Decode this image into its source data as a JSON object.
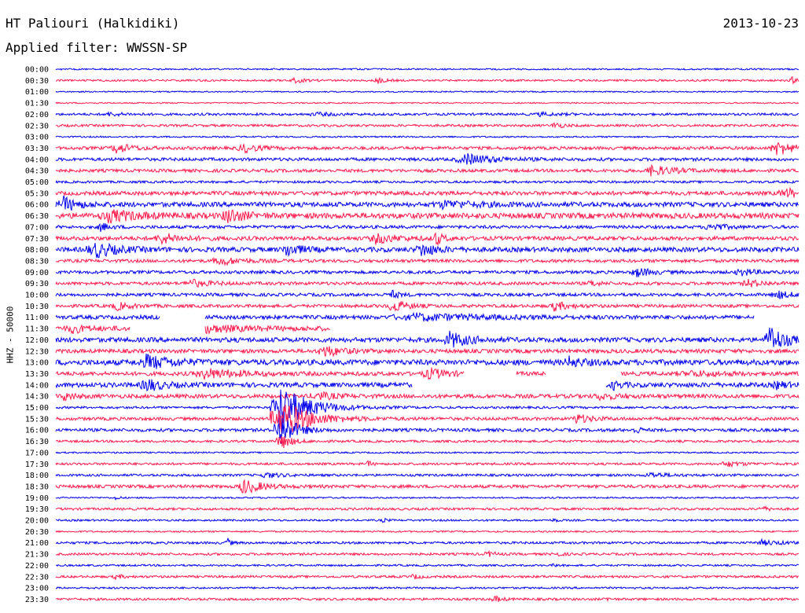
{
  "header": {
    "station": "HT Paliouri (Halkidiki)",
    "filter": "Applied filter: WWSSN-SP",
    "date": "2013-10-23"
  },
  "chart_data": {
    "type": "line",
    "title": "HT Paliouri (Halkidiki)",
    "subtitle": "Applied filter: WWSSN-SP",
    "ylabel": "HHZ - 50000",
    "xlabel": "",
    "colors": [
      "#0000ee",
      "#ff1a4d"
    ],
    "grid": false,
    "rows": [
      {
        "label": "00:00",
        "amp": 1,
        "events": []
      },
      {
        "label": "00:30",
        "amp": 1.2,
        "events": [
          [
            0.32,
            3,
            0.03
          ],
          [
            0.43,
            5,
            0.02
          ],
          [
            0.99,
            4,
            0.02
          ]
        ]
      },
      {
        "label": "01:00",
        "amp": 0.8,
        "events": []
      },
      {
        "label": "01:30",
        "amp": 0.8,
        "events": []
      },
      {
        "label": "02:00",
        "amp": 1.5,
        "events": [
          [
            0.07,
            2,
            0.05
          ],
          [
            0.35,
            2,
            0.05
          ],
          [
            0.65,
            2,
            0.05
          ]
        ]
      },
      {
        "label": "02:30",
        "amp": 1.5,
        "events": [
          [
            0.67,
            5,
            0.02
          ]
        ]
      },
      {
        "label": "03:00",
        "amp": 1,
        "events": []
      },
      {
        "label": "03:30",
        "amp": 2,
        "events": [
          [
            0.08,
            7,
            0.04
          ],
          [
            0.25,
            6,
            0.04
          ],
          [
            0.97,
            9,
            0.05
          ]
        ]
      },
      {
        "label": "04:00",
        "amp": 2,
        "events": [
          [
            0.55,
            7,
            0.08
          ]
        ]
      },
      {
        "label": "04:30",
        "amp": 2,
        "events": [
          [
            0.8,
            6,
            0.07
          ]
        ]
      },
      {
        "label": "05:00",
        "amp": 1.5,
        "events": []
      },
      {
        "label": "05:30",
        "amp": 2.5,
        "events": [
          [
            0.98,
            6,
            0.05
          ]
        ]
      },
      {
        "label": "06:00",
        "amp": 3,
        "events": [
          [
            0.01,
            9,
            0.04
          ],
          [
            0.52,
            4,
            0.1
          ]
        ]
      },
      {
        "label": "06:30",
        "amp": 3.5,
        "events": [
          [
            0.07,
            7,
            0.08
          ],
          [
            0.23,
            10,
            0.04
          ]
        ]
      },
      {
        "label": "07:00",
        "amp": 2,
        "events": [
          [
            0.06,
            6,
            0.02
          ],
          [
            0.88,
            5,
            0.04
          ]
        ]
      },
      {
        "label": "07:30",
        "amp": 2.5,
        "events": [
          [
            0.14,
            7,
            0.05
          ],
          [
            0.43,
            6,
            0.06
          ],
          [
            0.51,
            9,
            0.02
          ]
        ]
      },
      {
        "label": "08:00",
        "amp": 3,
        "events": [
          [
            0.05,
            10,
            0.06
          ],
          [
            0.31,
            8,
            0.04
          ],
          [
            0.49,
            9,
            0.04
          ]
        ]
      },
      {
        "label": "08:30",
        "amp": 2,
        "events": [
          [
            0.22,
            5,
            0.06
          ]
        ]
      },
      {
        "label": "09:00",
        "amp": 2,
        "events": [
          [
            0.78,
            6,
            0.04
          ],
          [
            0.92,
            5,
            0.04
          ]
        ]
      },
      {
        "label": "09:30",
        "amp": 2,
        "events": [
          [
            0.18,
            5,
            0.05
          ],
          [
            0.72,
            4,
            0.02
          ],
          [
            0.93,
            5,
            0.04
          ]
        ]
      },
      {
        "label": "10:00",
        "amp": 2,
        "events": [
          [
            0.45,
            6,
            0.02
          ],
          [
            0.97,
            5,
            0.04
          ]
        ]
      },
      {
        "label": "10:30",
        "amp": 2,
        "events": [
          [
            0.08,
            5,
            0.04
          ],
          [
            0.45,
            9,
            0.04
          ],
          [
            0.67,
            6,
            0.04
          ]
        ]
      },
      {
        "label": "11:00",
        "amp": 2.5,
        "events": [
          [
            0.48,
            4,
            0.2
          ]
        ],
        "gaps": [
          [
            0.14,
            0.2
          ],
          [
            0.94,
            1.0
          ]
        ]
      },
      {
        "label": "11:30",
        "amp": 3,
        "events": [
          [
            0.02,
            5,
            0.04
          ],
          [
            0.2,
            4,
            0.1
          ]
        ],
        "gaps": [
          [
            0.1,
            0.2
          ],
          [
            0.37,
            1.0
          ]
        ]
      },
      {
        "label": "12:00",
        "amp": 3,
        "events": [
          [
            0.53,
            10,
            0.05
          ],
          [
            0.96,
            19,
            0.04
          ]
        ]
      },
      {
        "label": "12:30",
        "amp": 2.5,
        "events": [
          [
            0.36,
            7,
            0.05
          ]
        ]
      },
      {
        "label": "13:00",
        "amp": 3.5,
        "events": [
          [
            0.12,
            9,
            0.07
          ],
          [
            0.69,
            6,
            0.04
          ]
        ]
      },
      {
        "label": "13:30",
        "amp": 2.5,
        "events": [
          [
            0.2,
            6,
            0.1
          ],
          [
            0.5,
            7,
            0.05
          ],
          [
            0.85,
            3,
            0.1
          ]
        ],
        "gaps": [
          [
            0.55,
            0.62
          ],
          [
            0.66,
            0.76
          ]
        ]
      },
      {
        "label": "14:00",
        "amp": 3,
        "events": [
          [
            0.12,
            9,
            0.04
          ],
          [
            0.75,
            5,
            0.02
          ],
          [
            0.97,
            4,
            0.03
          ]
        ],
        "gaps": [
          [
            0.48,
            0.74
          ]
        ]
      },
      {
        "label": "14:30",
        "amp": 2.5,
        "events": [
          [
            0.01,
            5,
            0.03
          ],
          [
            0.35,
            5,
            0.05
          ],
          [
            0.73,
            4,
            0.05
          ]
        ]
      },
      {
        "label": "15:00",
        "amp": 1.5,
        "events": [
          [
            0.3,
            30,
            0.08
          ]
        ]
      },
      {
        "label": "15:30",
        "amp": 2,
        "events": [
          [
            0.3,
            26,
            0.08
          ],
          [
            0.7,
            6,
            0.04
          ]
        ]
      },
      {
        "label": "16:00",
        "amp": 2,
        "events": [
          [
            0.3,
            26,
            0.04
          ],
          [
            0.78,
            8,
            0.01
          ]
        ]
      },
      {
        "label": "16:30",
        "amp": 1.5,
        "events": [
          [
            0.3,
            12,
            0.03
          ]
        ]
      },
      {
        "label": "17:00",
        "amp": 1,
        "events": []
      },
      {
        "label": "17:30",
        "amp": 1.5,
        "events": [
          [
            0.42,
            4,
            0.01
          ],
          [
            0.9,
            4,
            0.04
          ]
        ]
      },
      {
        "label": "18:00",
        "amp": 1.5,
        "events": [
          [
            0.28,
            4,
            0.04
          ],
          [
            0.8,
            3,
            0.05
          ]
        ]
      },
      {
        "label": "18:30",
        "amp": 2,
        "events": [
          [
            0.25,
            10,
            0.05
          ]
        ]
      },
      {
        "label": "19:00",
        "amp": 1,
        "events": [
          [
            0.08,
            3,
            0.01
          ]
        ]
      },
      {
        "label": "19:30",
        "amp": 1.5,
        "events": [
          [
            0.95,
            3,
            0.02
          ]
        ]
      },
      {
        "label": "20:00",
        "amp": 1.2,
        "events": [
          [
            0.44,
            3,
            0.01
          ],
          [
            0.67,
            3,
            0.01
          ]
        ]
      },
      {
        "label": "20:30",
        "amp": 1,
        "events": []
      },
      {
        "label": "21:00",
        "amp": 1.5,
        "events": [
          [
            0.23,
            7,
            0.01
          ],
          [
            0.95,
            3,
            0.06
          ]
        ]
      },
      {
        "label": "21:30",
        "amp": 1.5,
        "events": [
          [
            0.58,
            4,
            0.02
          ],
          [
            0.67,
            3,
            0.02
          ]
        ]
      },
      {
        "label": "22:00",
        "amp": 1.2,
        "events": [
          [
            0.67,
            3,
            0.01
          ]
        ]
      },
      {
        "label": "22:30",
        "amp": 1.5,
        "events": [
          [
            0.08,
            3,
            0.02
          ],
          [
            0.48,
            3,
            0.02
          ]
        ]
      },
      {
        "label": "23:00",
        "amp": 1.2,
        "events": []
      },
      {
        "label": "23:30",
        "amp": 1.5,
        "events": [
          [
            0.59,
            4,
            0.02
          ],
          [
            0.74,
            3,
            0.01
          ]
        ]
      }
    ]
  }
}
